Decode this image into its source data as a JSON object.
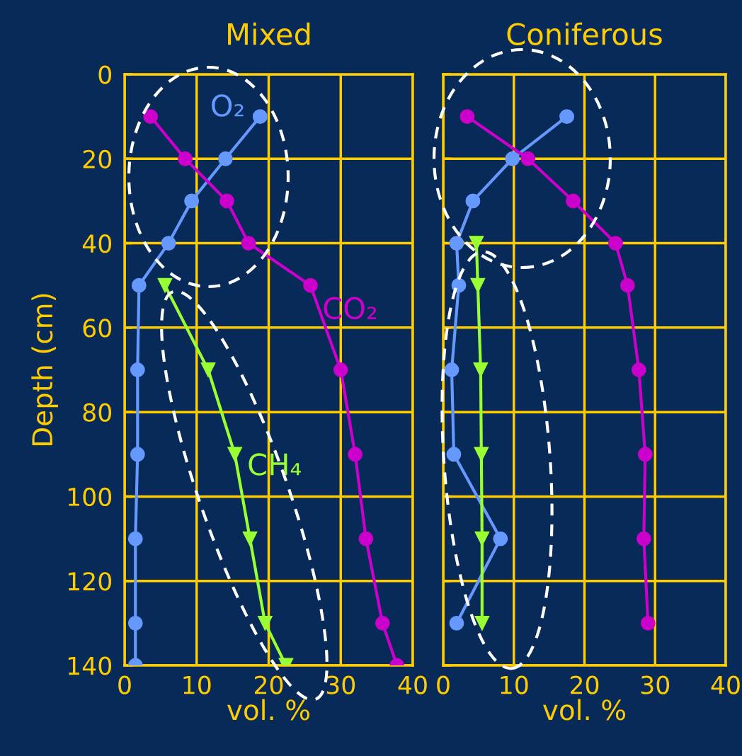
{
  "chart_data": [
    {
      "type": "line",
      "title": "Mixed",
      "xlabel": "vol. %",
      "ylabel": "Depth (cm)",
      "xlim": [
        0,
        40
      ],
      "xticks": [
        0,
        10,
        20,
        30,
        40
      ],
      "ylim": [
        140,
        0
      ],
      "yticks": [
        0,
        20,
        40,
        60,
        80,
        100,
        120,
        140
      ],
      "grid": true,
      "line_style": "solid",
      "series": [
        {
          "name": "O₂",
          "color": "#6699ff",
          "marker": "circle",
          "x": [
            18.8,
            14,
            9.3,
            6.1,
            2,
            1.8,
            1.8,
            1.5,
            1.5,
            1.5
          ],
          "values": [
            10,
            20,
            30,
            40,
            50,
            70,
            90,
            110,
            130,
            140
          ]
        },
        {
          "name": "CO₂",
          "color": "#cc00cc",
          "marker": "circle",
          "x": [
            3.6,
            8.4,
            14.2,
            17.2,
            25.8,
            30,
            32,
            33.5,
            35.8,
            37.8
          ],
          "values": [
            10,
            20,
            30,
            40,
            50,
            70,
            90,
            110,
            130,
            140
          ]
        },
        {
          "name": "CH₄",
          "color": "#99ff33",
          "marker": "triangle",
          "x": [
            5.6,
            11.6,
            15.3,
            17.4,
            19.5,
            22.4
          ],
          "values": [
            50,
            70,
            90,
            110,
            130,
            140
          ]
        }
      ]
    },
    {
      "type": "line",
      "title": "Coniferous",
      "xlabel": "vol. %",
      "xlim": [
        0,
        40
      ],
      "xticks": [
        0,
        10,
        20,
        30,
        40
      ],
      "ylim": [
        140,
        0
      ],
      "yticks": [
        0,
        20,
        40,
        60,
        80,
        100,
        120,
        140
      ],
      "tick_labels": "x",
      "grid": true,
      "line_style": "solid",
      "series": [
        {
          "color": "#6699ff",
          "marker": "circle",
          "x": [
            17.5,
            9.8,
            4.2,
            1.9,
            2.2,
            1.2,
            1.5,
            8.1,
            1.9
          ],
          "values": [
            10,
            20,
            30,
            40,
            50,
            70,
            90,
            110,
            130
          ]
        },
        {
          "color": "#cc00cc",
          "marker": "circle",
          "x": [
            3.4,
            12,
            18.4,
            24.4,
            26.1,
            27.7,
            28.6,
            28.4,
            29
          ],
          "values": [
            10,
            20,
            30,
            40,
            50,
            70,
            90,
            110,
            130
          ]
        },
        {
          "color": "#99ff33",
          "marker": "triangle",
          "x": [
            4.7,
            4.9,
            5.3,
            5.4,
            5.5,
            5.5
          ],
          "values": [
            40,
            50,
            70,
            90,
            110,
            130
          ]
        }
      ]
    }
  ]
}
